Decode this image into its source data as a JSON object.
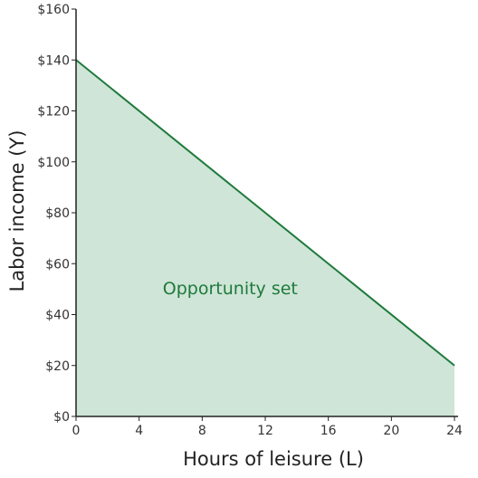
{
  "chart_data": {
    "type": "area",
    "title": "",
    "xlabel": "Hours of leisure (L)",
    "ylabel": "Labor income (Y)",
    "xlim": [
      0,
      24
    ],
    "ylim": [
      0,
      160
    ],
    "x_ticks": [
      0,
      4,
      8,
      12,
      16,
      20,
      24
    ],
    "y_ticks": [
      0,
      20,
      40,
      60,
      80,
      100,
      120,
      140,
      160
    ],
    "y_tick_labels": [
      "$0",
      "$20",
      "$40",
      "$60",
      "$80",
      "$100",
      "$120",
      "$140",
      "$160"
    ],
    "grid": false,
    "series": [
      {
        "x": [
          0,
          24
        ],
        "y": [
          140,
          20
        ]
      }
    ],
    "annotations": [
      {
        "text": "Opportunity set",
        "x": 5.5,
        "y": 48
      }
    ],
    "colors": {
      "line": "#1e7a3c",
      "fill": "#cfe5d7",
      "annotation": "#1e7a3c",
      "axis": "#222222"
    }
  }
}
